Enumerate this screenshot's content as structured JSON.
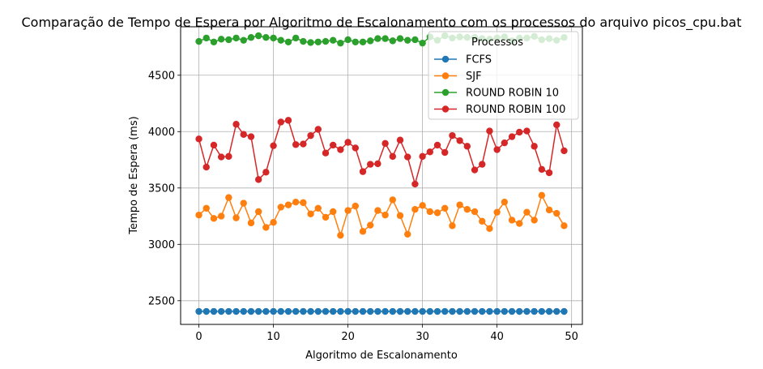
{
  "chart_data": {
    "type": "line",
    "title": "Comparação de Tempo de Espera por Algoritmo de Escalonamento com os processos do arquivo picos_cpu.bat",
    "xlabel": "Algoritmo de Escalonamento",
    "ylabel": "Tempo de Espera (ms)",
    "xlim": [
      -2.45,
      51.45
    ],
    "ylim": [
      2290,
      4930
    ],
    "xticks": [
      0,
      10,
      20,
      30,
      40,
      50
    ],
    "yticks": [
      2500,
      3000,
      3500,
      4000,
      4500
    ],
    "grid": true,
    "legend": {
      "title": "Processos",
      "position": "top-right"
    },
    "x": [
      0,
      1,
      2,
      3,
      4,
      5,
      6,
      7,
      8,
      9,
      10,
      11,
      12,
      13,
      14,
      15,
      16,
      17,
      18,
      19,
      20,
      21,
      22,
      23,
      24,
      25,
      26,
      27,
      28,
      29,
      30,
      31,
      32,
      33,
      34,
      35,
      36,
      37,
      38,
      39,
      40,
      41,
      42,
      43,
      44,
      45,
      46,
      47,
      48,
      49
    ],
    "series": [
      {
        "name": "FCFS",
        "color": "#1f77b4",
        "values": [
          2405,
          2405,
          2405,
          2405,
          2405,
          2405,
          2405,
          2405,
          2405,
          2405,
          2405,
          2405,
          2405,
          2405,
          2405,
          2405,
          2405,
          2405,
          2405,
          2405,
          2405,
          2405,
          2405,
          2405,
          2405,
          2405,
          2405,
          2405,
          2405,
          2405,
          2405,
          2405,
          2405,
          2405,
          2405,
          2405,
          2405,
          2405,
          2405,
          2405,
          2405,
          2405,
          2405,
          2405,
          2405,
          2405,
          2405,
          2405,
          2405,
          2405
        ]
      },
      {
        "name": "SJF",
        "color": "#ff7f0e",
        "values": [
          3260,
          3320,
          3230,
          3250,
          3415,
          3235,
          3365,
          3190,
          3290,
          3150,
          3195,
          3330,
          3350,
          3375,
          3370,
          3270,
          3320,
          3240,
          3290,
          3080,
          3300,
          3340,
          3115,
          3170,
          3300,
          3260,
          3395,
          3255,
          3090,
          3310,
          3345,
          3290,
          3280,
          3320,
          3165,
          3350,
          3310,
          3290,
          3205,
          3140,
          3285,
          3375,
          3215,
          3185,
          3285,
          3215,
          3435,
          3305,
          3275,
          3165
        ]
      },
      {
        "name": "ROUND ROBIN 10",
        "color": "#2ca02c",
        "values": [
          4800,
          4830,
          4795,
          4820,
          4815,
          4830,
          4810,
          4835,
          4850,
          4835,
          4830,
          4810,
          4795,
          4830,
          4800,
          4790,
          4795,
          4800,
          4810,
          4785,
          4815,
          4795,
          4795,
          4805,
          4825,
          4825,
          4805,
          4825,
          4810,
          4815,
          4785,
          4840,
          4810,
          4850,
          4830,
          4840,
          4835,
          4835,
          4825,
          4820,
          4830,
          4840,
          4805,
          4830,
          4830,
          4845,
          4815,
          4825,
          4810,
          4835
        ]
      },
      {
        "name": "ROUND ROBIN 100",
        "color": "#d62728",
        "values": [
          3935,
          3685,
          3880,
          3775,
          3780,
          4065,
          3975,
          3955,
          3575,
          3640,
          3875,
          4085,
          4100,
          3885,
          3890,
          3965,
          4020,
          3810,
          3880,
          3840,
          3905,
          3855,
          3645,
          3710,
          3715,
          3895,
          3780,
          3925,
          3775,
          3535,
          3780,
          3820,
          3880,
          3815,
          3965,
          3920,
          3870,
          3660,
          3710,
          4005,
          3840,
          3900,
          3955,
          3995,
          4005,
          3870,
          3665,
          3635,
          4060,
          3830
        ]
      }
    ]
  }
}
